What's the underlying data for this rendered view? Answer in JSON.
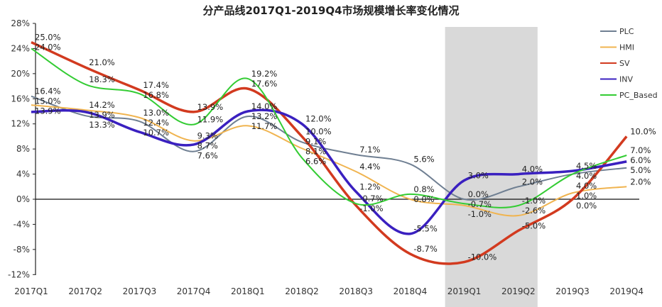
{
  "chart_data": {
    "type": "line",
    "title": "分产品线2017Q1-2019Q4市场规模增长率变化情况",
    "categories": [
      "2017Q1",
      "2017Q2",
      "2017Q3",
      "2017Q4",
      "2018Q1",
      "2018Q2",
      "2018Q3",
      "2018Q4",
      "2019Q1",
      "2019Q2",
      "2019Q3",
      "2019Q4"
    ],
    "ylim": [
      -12,
      28
    ],
    "yticks": [
      "-12%",
      "-8%",
      "-4%",
      "0%",
      "4%",
      "8%",
      "12%",
      "16%",
      "20%",
      "24%",
      "28%"
    ],
    "highlight_range": [
      "2019Q1",
      "2019Q2"
    ],
    "legend_position": "top-right",
    "series": [
      {
        "name": "PLC",
        "color": "#6f7f92",
        "values": [
          16.4,
          13.3,
          12.4,
          7.6,
          13.2,
          9.1,
          7.1,
          5.6,
          0.0,
          2.0,
          4.0,
          5.0
        ]
      },
      {
        "name": "HMI",
        "color": "#f0b450",
        "values": [
          15.0,
          14.2,
          13.0,
          9.3,
          11.7,
          8.1,
          4.4,
          0.0,
          -1.0,
          -2.6,
          1.0,
          2.0
        ]
      },
      {
        "name": "SV",
        "color": "#d23a1f",
        "values": [
          25.0,
          21.0,
          17.4,
          13.9,
          17.6,
          10.0,
          -1.0,
          -8.7,
          -10.0,
          -5.0,
          0.0,
          10.0
        ]
      },
      {
        "name": "INV",
        "color": "#3a20c0",
        "values": [
          13.9,
          13.9,
          10.7,
          8.7,
          14.0,
          12.0,
          1.2,
          -5.5,
          3.0,
          4.0,
          4.5,
          6.0
        ]
      },
      {
        "name": "PC_Based",
        "color": "#33cc33",
        "values": [
          24.0,
          18.3,
          16.8,
          11.9,
          19.2,
          6.6,
          -0.7,
          0.8,
          -0.7,
          -1.0,
          4.0,
          7.0
        ]
      }
    ]
  }
}
